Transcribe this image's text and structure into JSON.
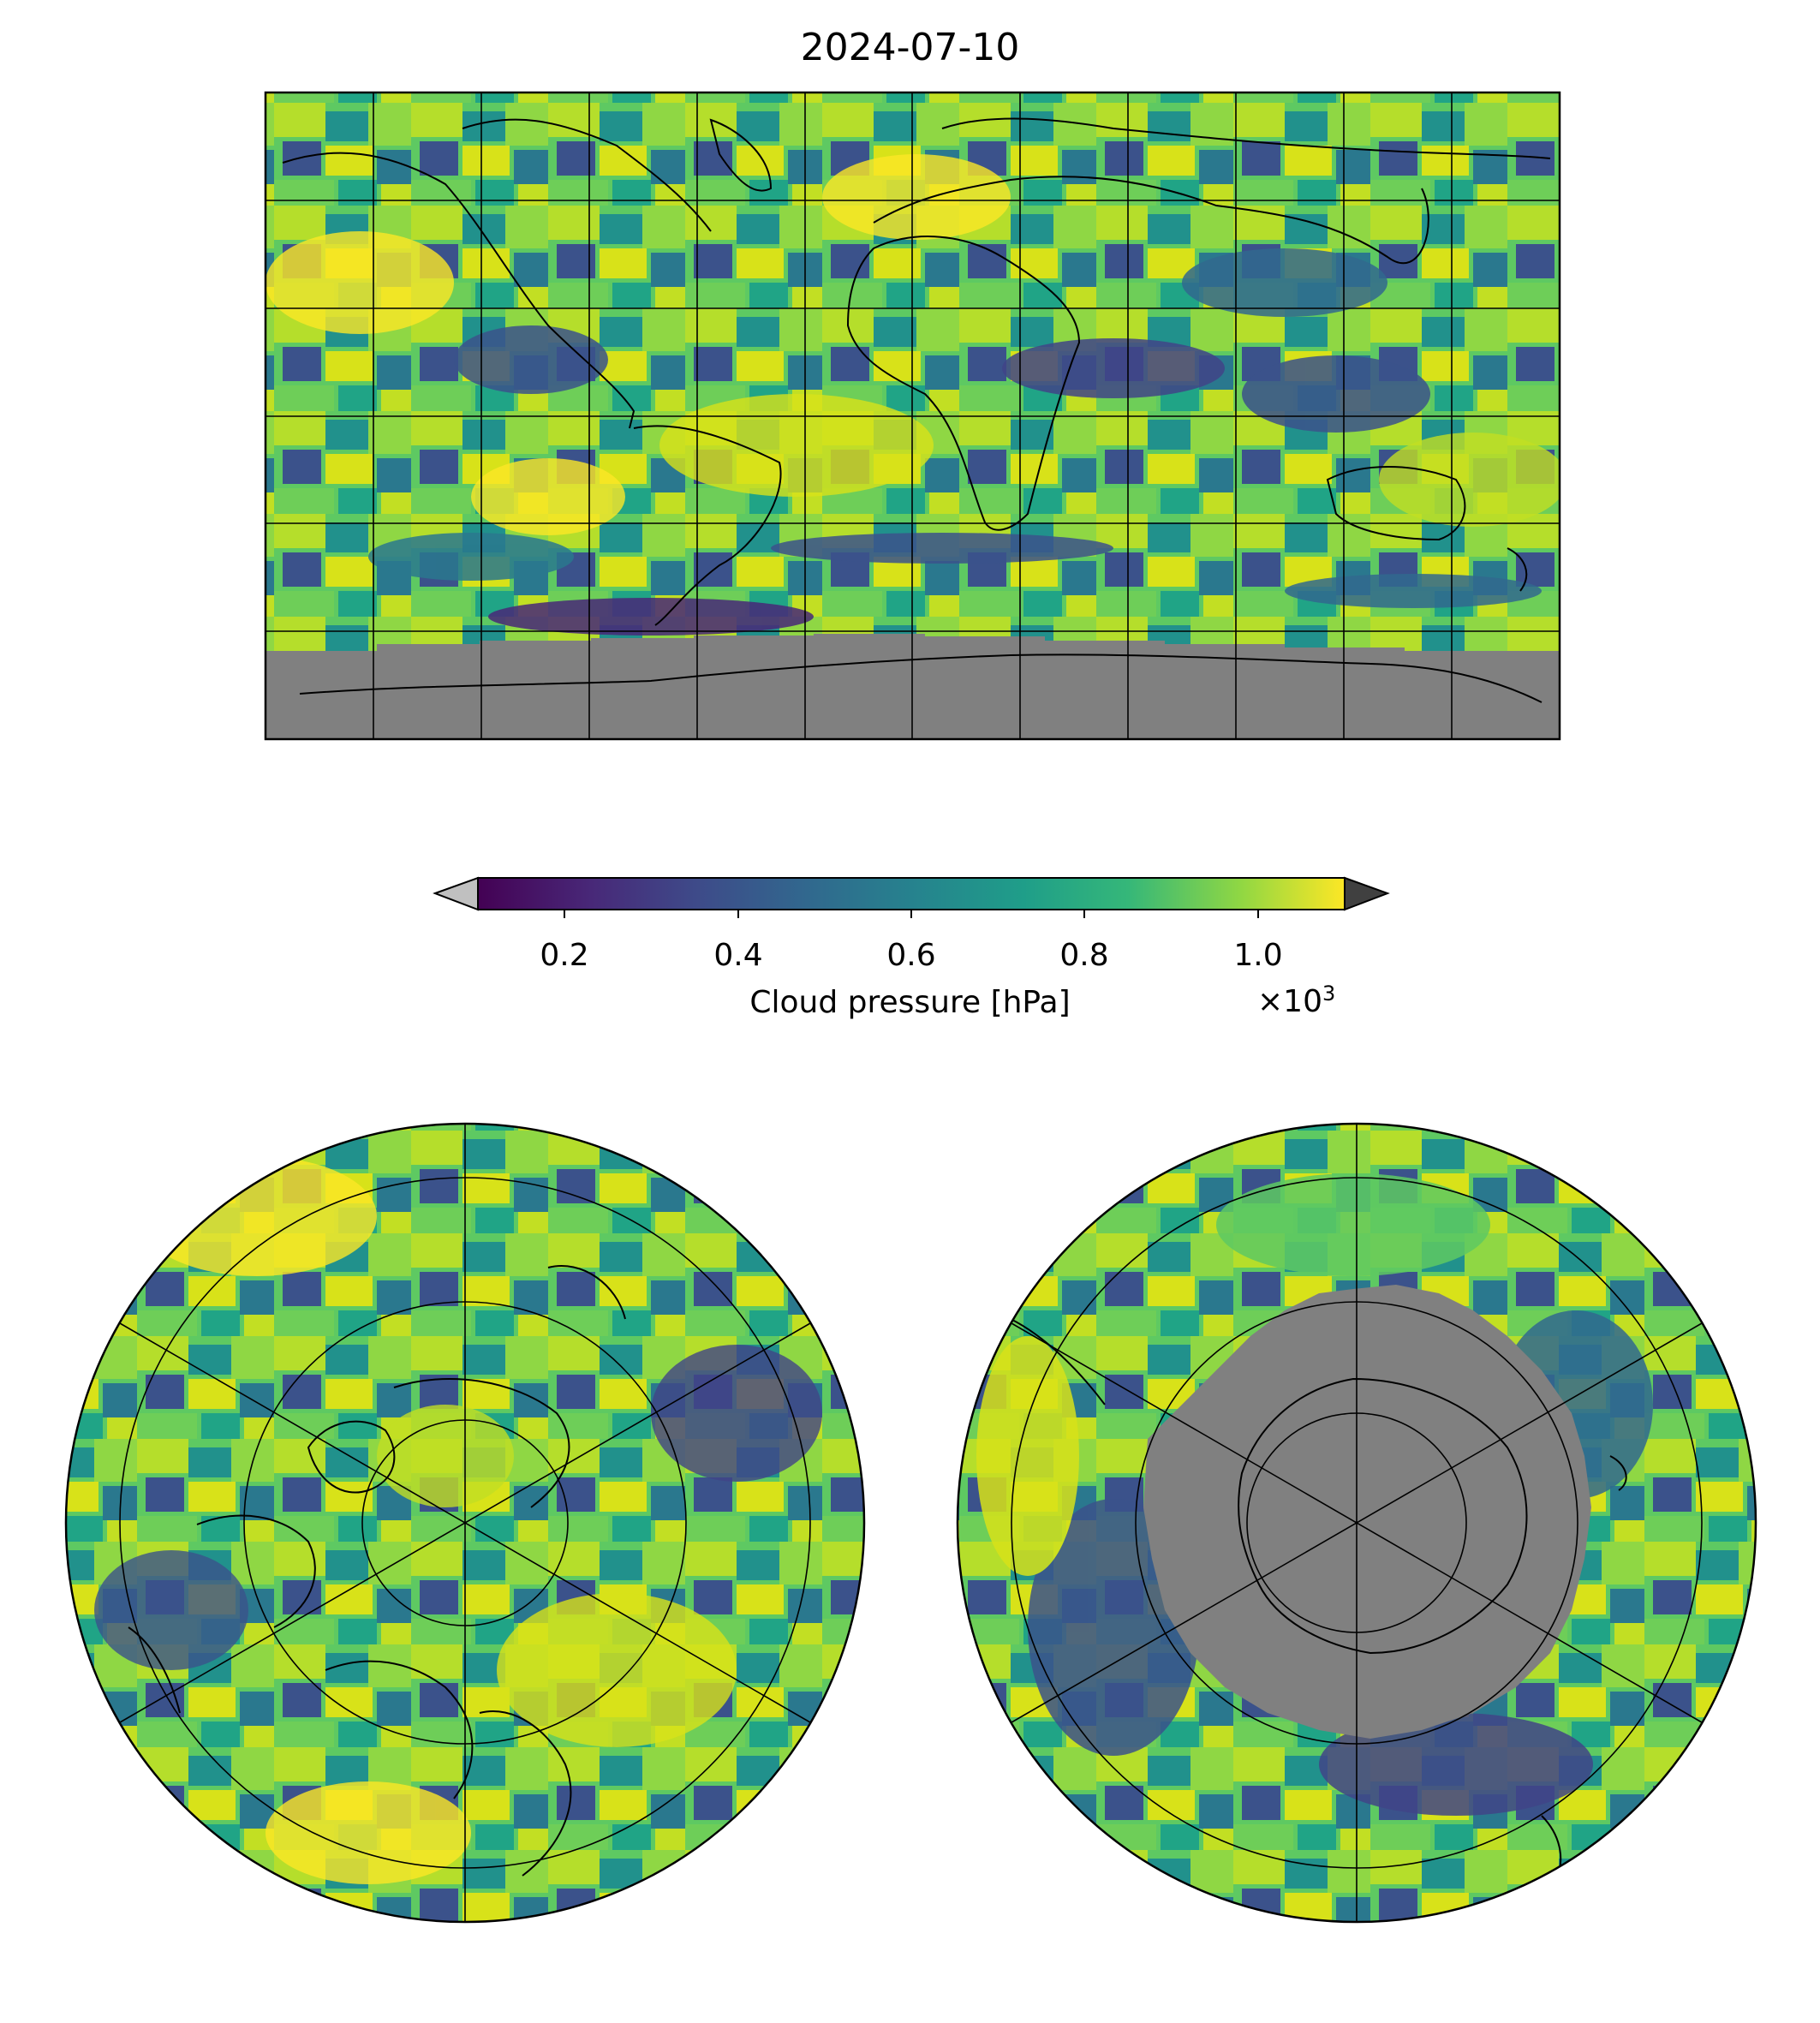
{
  "figure": {
    "title": "2024-07-10",
    "colorbar": {
      "label": "Cloud pressure [hPa]",
      "ticks": [
        "0.2",
        "0.4",
        "0.6",
        "0.8",
        "1.0"
      ],
      "tick_values": [
        0.2,
        0.4,
        0.6,
        0.8,
        1.0
      ],
      "range": [
        0.1,
        1.1
      ],
      "offset_base": "×10",
      "offset_exp": "3",
      "colormap": "viridis",
      "under_color": "#c0c0c0",
      "over_color": "#404040"
    },
    "colors": {
      "no_data": "#808080",
      "coastline": "#000000",
      "viridis_dark": "#440154",
      "viridis_blue": "#3b528b",
      "viridis_teal": "#21918c",
      "viridis_green": "#5ec962",
      "viridis_yellow": "#fde725"
    },
    "maps": [
      {
        "name": "global-map",
        "projection": "plate-carree",
        "gridlines": "30° lon / 30° lat"
      },
      {
        "name": "north-polar-map",
        "projection": "north-polar-stereographic"
      },
      {
        "name": "south-polar-map",
        "projection": "south-polar-stereographic"
      }
    ]
  }
}
